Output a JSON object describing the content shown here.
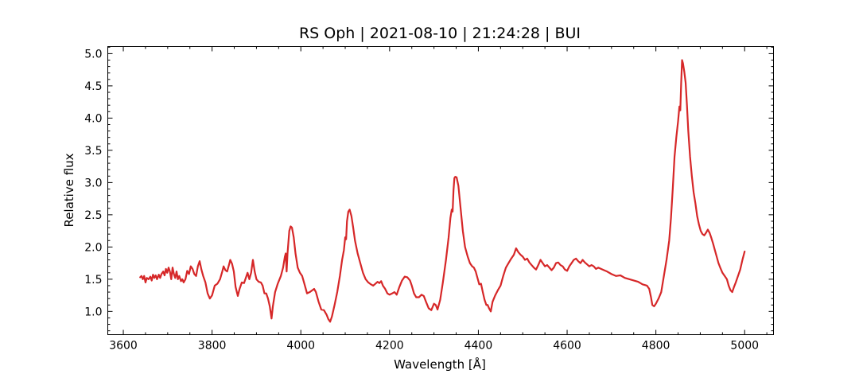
{
  "chart_data": {
    "type": "line",
    "title": "RS Oph | 2021-08-10 | 21:24:28 | BUI",
    "xlabel": "Wavelength [Å]",
    "ylabel": "Relative flux",
    "xlim": [
      3565,
      5065
    ],
    "ylim": [
      0.64,
      5.11
    ],
    "x_ticks": [
      3600,
      3800,
      4000,
      4200,
      4400,
      4600,
      4800,
      5000
    ],
    "x_tick_labels": [
      "3600",
      "3800",
      "4000",
      "4200",
      "4400",
      "4600",
      "4800",
      "5000"
    ],
    "y_ticks": [
      1.0,
      1.5,
      2.0,
      2.5,
      3.0,
      3.5,
      4.0,
      4.5,
      5.0
    ],
    "y_tick_labels": [
      "1.0",
      "1.5",
      "2.0",
      "2.5",
      "3.0",
      "3.5",
      "4.0",
      "4.5",
      "5.0"
    ],
    "x_minor_step": 50,
    "y_minor_step": 0.1,
    "ticks_direction": "in",
    "grid": false,
    "series": [
      {
        "color": "#d62728",
        "points": [
          [
            3638,
            1.53
          ],
          [
            3641,
            1.55
          ],
          [
            3644,
            1.5
          ],
          [
            3647,
            1.55
          ],
          [
            3650,
            1.45
          ],
          [
            3653,
            1.52
          ],
          [
            3657,
            1.5
          ],
          [
            3661,
            1.54
          ],
          [
            3664,
            1.48
          ],
          [
            3667,
            1.57
          ],
          [
            3670,
            1.52
          ],
          [
            3673,
            1.56
          ],
          [
            3676,
            1.5
          ],
          [
            3680,
            1.57
          ],
          [
            3683,
            1.52
          ],
          [
            3686,
            1.58
          ],
          [
            3690,
            1.62
          ],
          [
            3693,
            1.56
          ],
          [
            3696,
            1.66
          ],
          [
            3699,
            1.6
          ],
          [
            3702,
            1.68
          ],
          [
            3705,
            1.62
          ],
          [
            3708,
            1.5
          ],
          [
            3711,
            1.68
          ],
          [
            3714,
            1.58
          ],
          [
            3717,
            1.52
          ],
          [
            3720,
            1.62
          ],
          [
            3723,
            1.5
          ],
          [
            3726,
            1.55
          ],
          [
            3730,
            1.47
          ],
          [
            3733,
            1.5
          ],
          [
            3736,
            1.45
          ],
          [
            3740,
            1.5
          ],
          [
            3744,
            1.63
          ],
          [
            3748,
            1.58
          ],
          [
            3752,
            1.7
          ],
          [
            3756,
            1.66
          ],
          [
            3760,
            1.58
          ],
          [
            3764,
            1.55
          ],
          [
            3768,
            1.7
          ],
          [
            3772,
            1.78
          ],
          [
            3776,
            1.65
          ],
          [
            3780,
            1.55
          ],
          [
            3785,
            1.45
          ],
          [
            3790,
            1.28
          ],
          [
            3795,
            1.2
          ],
          [
            3800,
            1.25
          ],
          [
            3806,
            1.4
          ],
          [
            3812,
            1.43
          ],
          [
            3818,
            1.5
          ],
          [
            3823,
            1.62
          ],
          [
            3826,
            1.7
          ],
          [
            3830,
            1.64
          ],
          [
            3834,
            1.62
          ],
          [
            3838,
            1.72
          ],
          [
            3841,
            1.8
          ],
          [
            3845,
            1.74
          ],
          [
            3849,
            1.62
          ],
          [
            3853,
            1.38
          ],
          [
            3858,
            1.24
          ],
          [
            3862,
            1.35
          ],
          [
            3867,
            1.45
          ],
          [
            3872,
            1.44
          ],
          [
            3876,
            1.52
          ],
          [
            3880,
            1.6
          ],
          [
            3884,
            1.5
          ],
          [
            3888,
            1.6
          ],
          [
            3892,
            1.8
          ],
          [
            3896,
            1.62
          ],
          [
            3900,
            1.5
          ],
          [
            3905,
            1.46
          ],
          [
            3910,
            1.45
          ],
          [
            3914,
            1.4
          ],
          [
            3918,
            1.28
          ],
          [
            3922,
            1.28
          ],
          [
            3926,
            1.2
          ],
          [
            3930,
            1.08
          ],
          [
            3934,
            0.89
          ],
          [
            3937,
            1.08
          ],
          [
            3942,
            1.3
          ],
          [
            3948,
            1.43
          ],
          [
            3955,
            1.55
          ],
          [
            3960,
            1.68
          ],
          [
            3964,
            1.85
          ],
          [
            3966,
            1.9
          ],
          [
            3968,
            1.62
          ],
          [
            3970,
            1.9
          ],
          [
            3974,
            2.25
          ],
          [
            3977,
            2.32
          ],
          [
            3980,
            2.3
          ],
          [
            3984,
            2.15
          ],
          [
            3988,
            1.9
          ],
          [
            3993,
            1.68
          ],
          [
            3998,
            1.6
          ],
          [
            4003,
            1.55
          ],
          [
            4008,
            1.43
          ],
          [
            4014,
            1.28
          ],
          [
            4020,
            1.3
          ],
          [
            4026,
            1.33
          ],
          [
            4030,
            1.35
          ],
          [
            4034,
            1.3
          ],
          [
            4040,
            1.15
          ],
          [
            4046,
            1.03
          ],
          [
            4052,
            1.02
          ],
          [
            4058,
            0.95
          ],
          [
            4062,
            0.88
          ],
          [
            4066,
            0.84
          ],
          [
            4070,
            0.92
          ],
          [
            4076,
            1.1
          ],
          [
            4082,
            1.3
          ],
          [
            4088,
            1.55
          ],
          [
            4093,
            1.8
          ],
          [
            4097,
            1.95
          ],
          [
            4100,
            2.15
          ],
          [
            4102,
            2.12
          ],
          [
            4104,
            2.4
          ],
          [
            4107,
            2.55
          ],
          [
            4110,
            2.58
          ],
          [
            4114,
            2.48
          ],
          [
            4118,
            2.3
          ],
          [
            4122,
            2.1
          ],
          [
            4128,
            1.9
          ],
          [
            4134,
            1.75
          ],
          [
            4140,
            1.6
          ],
          [
            4146,
            1.5
          ],
          [
            4152,
            1.45
          ],
          [
            4158,
            1.42
          ],
          [
            4163,
            1.4
          ],
          [
            4168,
            1.43
          ],
          [
            4173,
            1.46
          ],
          [
            4177,
            1.44
          ],
          [
            4181,
            1.47
          ],
          [
            4185,
            1.4
          ],
          [
            4190,
            1.35
          ],
          [
            4195,
            1.28
          ],
          [
            4200,
            1.26
          ],
          [
            4206,
            1.28
          ],
          [
            4211,
            1.3
          ],
          [
            4216,
            1.26
          ],
          [
            4222,
            1.38
          ],
          [
            4228,
            1.48
          ],
          [
            4234,
            1.54
          ],
          [
            4240,
            1.53
          ],
          [
            4246,
            1.48
          ],
          [
            4250,
            1.4
          ],
          [
            4255,
            1.28
          ],
          [
            4260,
            1.22
          ],
          [
            4266,
            1.22
          ],
          [
            4272,
            1.26
          ],
          [
            4277,
            1.24
          ],
          [
            4282,
            1.15
          ],
          [
            4288,
            1.05
          ],
          [
            4294,
            1.02
          ],
          [
            4300,
            1.12
          ],
          [
            4304,
            1.1
          ],
          [
            4308,
            1.03
          ],
          [
            4314,
            1.18
          ],
          [
            4320,
            1.45
          ],
          [
            4327,
            1.8
          ],
          [
            4333,
            2.15
          ],
          [
            4337,
            2.45
          ],
          [
            4340,
            2.58
          ],
          [
            4342,
            2.55
          ],
          [
            4344,
            2.88
          ],
          [
            4346,
            3.07
          ],
          [
            4348,
            3.09
          ],
          [
            4351,
            3.08
          ],
          [
            4355,
            2.95
          ],
          [
            4360,
            2.6
          ],
          [
            4365,
            2.25
          ],
          [
            4370,
            2.0
          ],
          [
            4376,
            1.85
          ],
          [
            4381,
            1.75
          ],
          [
            4386,
            1.7
          ],
          [
            4390,
            1.68
          ],
          [
            4394,
            1.62
          ],
          [
            4398,
            1.52
          ],
          [
            4402,
            1.42
          ],
          [
            4406,
            1.43
          ],
          [
            4410,
            1.3
          ],
          [
            4414,
            1.18
          ],
          [
            4418,
            1.1
          ],
          [
            4421,
            1.1
          ],
          [
            4424,
            1.05
          ],
          [
            4428,
            1.0
          ],
          [
            4432,
            1.15
          ],
          [
            4438,
            1.25
          ],
          [
            4444,
            1.33
          ],
          [
            4450,
            1.4
          ],
          [
            4456,
            1.55
          ],
          [
            4462,
            1.68
          ],
          [
            4468,
            1.75
          ],
          [
            4474,
            1.82
          ],
          [
            4480,
            1.88
          ],
          [
            4485,
            1.98
          ],
          [
            4490,
            1.92
          ],
          [
            4495,
            1.88
          ],
          [
            4500,
            1.85
          ],
          [
            4505,
            1.8
          ],
          [
            4510,
            1.82
          ],
          [
            4515,
            1.76
          ],
          [
            4520,
            1.72
          ],
          [
            4525,
            1.68
          ],
          [
            4530,
            1.65
          ],
          [
            4535,
            1.72
          ],
          [
            4540,
            1.8
          ],
          [
            4545,
            1.75
          ],
          [
            4550,
            1.7
          ],
          [
            4555,
            1.72
          ],
          [
            4560,
            1.68
          ],
          [
            4565,
            1.64
          ],
          [
            4570,
            1.68
          ],
          [
            4575,
            1.75
          ],
          [
            4580,
            1.76
          ],
          [
            4585,
            1.72
          ],
          [
            4590,
            1.7
          ],
          [
            4595,
            1.65
          ],
          [
            4600,
            1.63
          ],
          [
            4605,
            1.7
          ],
          [
            4610,
            1.75
          ],
          [
            4615,
            1.8
          ],
          [
            4620,
            1.82
          ],
          [
            4625,
            1.78
          ],
          [
            4630,
            1.75
          ],
          [
            4635,
            1.8
          ],
          [
            4640,
            1.76
          ],
          [
            4645,
            1.73
          ],
          [
            4650,
            1.7
          ],
          [
            4655,
            1.72
          ],
          [
            4660,
            1.7
          ],
          [
            4665,
            1.66
          ],
          [
            4670,
            1.68
          ],
          [
            4680,
            1.65
          ],
          [
            4690,
            1.62
          ],
          [
            4700,
            1.58
          ],
          [
            4710,
            1.55
          ],
          [
            4720,
            1.56
          ],
          [
            4730,
            1.52
          ],
          [
            4740,
            1.5
          ],
          [
            4750,
            1.48
          ],
          [
            4760,
            1.46
          ],
          [
            4770,
            1.42
          ],
          [
            4780,
            1.4
          ],
          [
            4785,
            1.35
          ],
          [
            4789,
            1.22
          ],
          [
            4792,
            1.1
          ],
          [
            4796,
            1.08
          ],
          [
            4800,
            1.12
          ],
          [
            4806,
            1.2
          ],
          [
            4812,
            1.3
          ],
          [
            4818,
            1.55
          ],
          [
            4824,
            1.8
          ],
          [
            4830,
            2.1
          ],
          [
            4834,
            2.45
          ],
          [
            4838,
            2.9
          ],
          [
            4842,
            3.4
          ],
          [
            4846,
            3.7
          ],
          [
            4850,
            3.95
          ],
          [
            4853,
            4.18
          ],
          [
            4855,
            4.12
          ],
          [
            4857,
            4.55
          ],
          [
            4859,
            4.9
          ],
          [
            4861,
            4.85
          ],
          [
            4864,
            4.72
          ],
          [
            4867,
            4.55
          ],
          [
            4870,
            4.2
          ],
          [
            4873,
            3.8
          ],
          [
            4877,
            3.4
          ],
          [
            4881,
            3.1
          ],
          [
            4885,
            2.85
          ],
          [
            4889,
            2.68
          ],
          [
            4893,
            2.48
          ],
          [
            4897,
            2.35
          ],
          [
            4901,
            2.25
          ],
          [
            4905,
            2.2
          ],
          [
            4909,
            2.18
          ],
          [
            4913,
            2.22
          ],
          [
            4917,
            2.27
          ],
          [
            4921,
            2.22
          ],
          [
            4925,
            2.14
          ],
          [
            4929,
            2.05
          ],
          [
            4933,
            1.95
          ],
          [
            4937,
            1.85
          ],
          [
            4941,
            1.75
          ],
          [
            4945,
            1.68
          ],
          [
            4950,
            1.6
          ],
          [
            4955,
            1.55
          ],
          [
            4960,
            1.5
          ],
          [
            4964,
            1.4
          ],
          [
            4968,
            1.33
          ],
          [
            4972,
            1.3
          ],
          [
            4976,
            1.38
          ],
          [
            4980,
            1.45
          ],
          [
            4985,
            1.55
          ],
          [
            4990,
            1.65
          ],
          [
            4995,
            1.8
          ],
          [
            5000,
            1.93
          ]
        ]
      }
    ]
  }
}
